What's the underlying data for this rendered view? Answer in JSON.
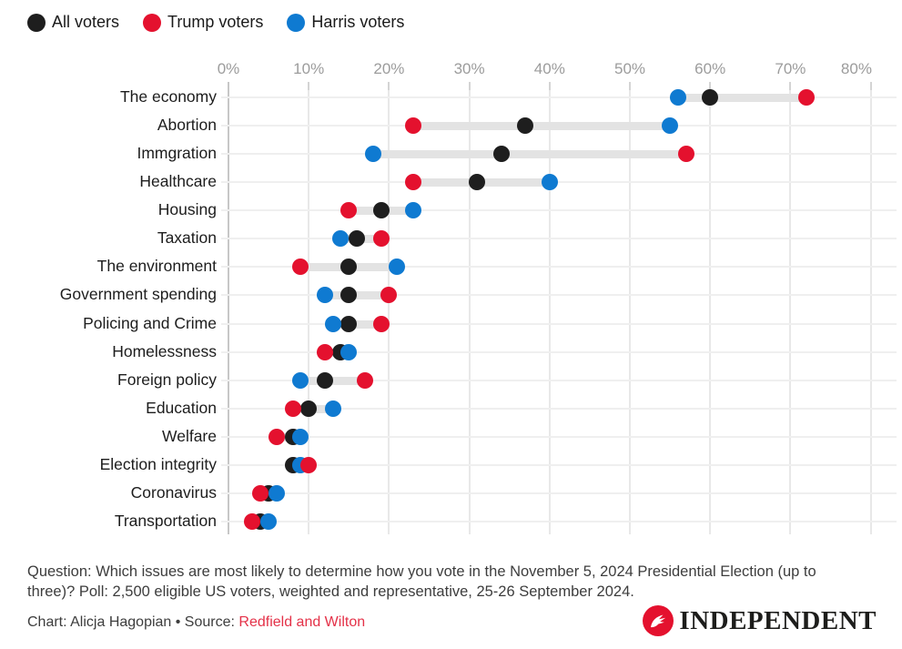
{
  "legend": [
    {
      "label": "All voters",
      "color": "#1e1e1e"
    },
    {
      "label": "Trump voters",
      "color": "#e4112e"
    },
    {
      "label": "Harris voters",
      "color": "#0f7ad1"
    }
  ],
  "chart_data": {
    "type": "scatter",
    "subtype": "dumbbell-dot-plot",
    "x_axis": {
      "tick_values": [
        0,
        10,
        20,
        30,
        40,
        50,
        60,
        70,
        80
      ],
      "tick_labels": [
        "0%",
        "10%",
        "20%",
        "30%",
        "40%",
        "50%",
        "60%",
        "70%",
        "80%"
      ],
      "min": 0,
      "max": 80,
      "grid": true,
      "position": "top"
    },
    "categories": [
      "The economy",
      "Abortion",
      "Immgration",
      "Healthcare",
      "Housing",
      "Taxation",
      "The environment",
      "Government spending",
      "Policing and Crime",
      "Homelessness",
      "Foreign policy",
      "Education",
      "Welfare",
      "Election integrity",
      "Coronavirus",
      "Transportation"
    ],
    "series": [
      {
        "name": "All voters",
        "color": "#1e1e1e",
        "values": [
          60,
          37,
          34,
          31,
          19,
          16,
          15,
          15,
          15,
          14,
          12,
          10,
          8,
          8,
          5,
          4
        ]
      },
      {
        "name": "Harris voters",
        "color": "#0f7ad1",
        "values": [
          56,
          55,
          18,
          40,
          23,
          14,
          21,
          12,
          13,
          15,
          9,
          13,
          9,
          9,
          6,
          5
        ]
      },
      {
        "name": "Trump voters",
        "color": "#e4112e",
        "values": [
          72,
          23,
          57,
          23,
          15,
          19,
          9,
          20,
          19,
          12,
          17,
          8,
          6,
          10,
          4,
          3
        ]
      }
    ],
    "legend_position": "top-left",
    "connector_color": "#e3e3e3"
  },
  "footer": {
    "question": "Question: Which issues are most likely to determine how you vote in the November 5, 2024 Presidential Election (up to three)? Poll: 2,500 eligible US voters, weighted and representative, 25-26 September 2024.",
    "credit_prefix": "Chart: Alicja Hagopian • Source: ",
    "source_link": "Redfield and Wilton"
  },
  "logo": {
    "name": "INDEPENDENT",
    "brand_red": "#e4112e"
  }
}
